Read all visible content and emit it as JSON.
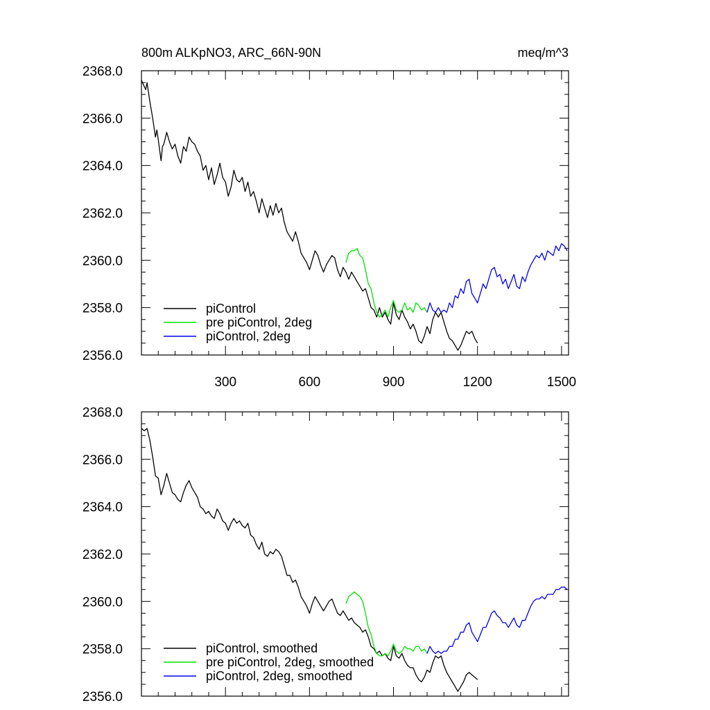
{
  "chart_data": [
    {
      "type": "line",
      "title": "800m ALKpNO3, ARC_66N-90N",
      "units": "meq/m^3",
      "ylim": [
        2356.0,
        2368.0
      ],
      "xlim": [
        0,
        1525
      ],
      "xticks": [
        300,
        600,
        900,
        1200,
        1500
      ],
      "xtick_labels": [
        "300",
        "600",
        "900",
        "1200",
        "1500"
      ],
      "yticks": [
        2356.0,
        2358.0,
        2360.0,
        2362.0,
        2364.0,
        2366.0,
        2368.0
      ],
      "ytick_labels": [
        "2356.0",
        "2358.0",
        "2360.0",
        "2362.0",
        "2364.0",
        "2366.0",
        "2368.0"
      ],
      "grid": false,
      "legend_position": "bottom-left",
      "series": [
        {
          "name": "piControl",
          "color": "#000000",
          "x": [
            0,
            15,
            20,
            30,
            40,
            50,
            55,
            60,
            70,
            75,
            80,
            90,
            100,
            110,
            120,
            130,
            140,
            150,
            160,
            170,
            180,
            190,
            200,
            210,
            220,
            230,
            240,
            250,
            260,
            270,
            280,
            290,
            300,
            310,
            320,
            330,
            340,
            350,
            360,
            370,
            380,
            390,
            400,
            410,
            420,
            430,
            440,
            450,
            460,
            470,
            480,
            490,
            500,
            510,
            520,
            530,
            540,
            550,
            560,
            570,
            580,
            590,
            600,
            610,
            620,
            630,
            640,
            650,
            660,
            670,
            680,
            690,
            700,
            710,
            720,
            730,
            740,
            750,
            760,
            770,
            780,
            790,
            800,
            810,
            820,
            830,
            840,
            850,
            860,
            870,
            880,
            890,
            900,
            910,
            920,
            930,
            940,
            950,
            960,
            970,
            980,
            990,
            1000,
            1010,
            1020,
            1030,
            1040,
            1050,
            1060,
            1070,
            1080,
            1090,
            1100,
            1110,
            1120,
            1130,
            1140,
            1150,
            1160,
            1170,
            1180,
            1190,
            1200
          ],
          "y": [
            2367.6,
            2367.2,
            2367.5,
            2366.7,
            2366.0,
            2365.2,
            2365.5,
            2365.1,
            2364.2,
            2364.8,
            2364.9,
            2365.4,
            2365.0,
            2364.7,
            2364.9,
            2364.4,
            2364.1,
            2364.8,
            2364.6,
            2365.2,
            2365.0,
            2364.9,
            2364.6,
            2364.4,
            2363.8,
            2364.0,
            2363.4,
            2363.9,
            2363.2,
            2363.6,
            2364.1,
            2363.5,
            2363.3,
            2362.7,
            2363.1,
            2363.8,
            2363.4,
            2363.3,
            2363.5,
            2362.9,
            2363.3,
            2362.7,
            2362.9,
            2362.5,
            2362.0,
            2362.6,
            2362.2,
            2361.8,
            2362.3,
            2361.9,
            2362.4,
            2362.0,
            2362.2,
            2361.6,
            2361.2,
            2361.0,
            2360.8,
            2361.2,
            2360.8,
            2360.3,
            2360.1,
            2359.9,
            2359.6,
            2360.0,
            2360.4,
            2360.2,
            2359.8,
            2359.5,
            2359.8,
            2360.0,
            2360.2,
            2360.1,
            2359.6,
            2359.3,
            2359.7,
            2359.5,
            2359.2,
            2359.5,
            2359.3,
            2359.1,
            2358.9,
            2358.7,
            2358.8,
            2358.4,
            2358.0,
            2357.9,
            2357.6,
            2358.0,
            2357.6,
            2357.8,
            2357.5,
            2357.3,
            2358.2,
            2357.7,
            2357.5,
            2357.9,
            2357.6,
            2357.4,
            2357.1,
            2357.3,
            2357.0,
            2356.6,
            2356.5,
            2356.8,
            2357.2,
            2356.9,
            2357.5,
            2357.8,
            2357.6,
            2357.8,
            2357.4,
            2357.0,
            2356.7,
            2356.6,
            2356.4,
            2356.2,
            2356.4,
            2356.7,
            2357.0,
            2356.9,
            2357.0,
            2356.7,
            2356.5
          ]
        },
        {
          "name": "pre piControl, 2deg",
          "color": "#00e000",
          "x": [
            730,
            740,
            750,
            760,
            770,
            780,
            790,
            800,
            810,
            820,
            830,
            840,
            850,
            860,
            870,
            880,
            890,
            900,
            910,
            920,
            930,
            940,
            950,
            960,
            970,
            980,
            990,
            1000,
            1010,
            1020
          ],
          "y": [
            2359.9,
            2360.3,
            2360.4,
            2360.4,
            2360.5,
            2360.2,
            2360.1,
            2359.6,
            2359.0,
            2358.8,
            2358.2,
            2357.8,
            2357.6,
            2357.7,
            2357.9,
            2357.6,
            2358.0,
            2358.3,
            2357.9,
            2357.8,
            2357.9,
            2358.2,
            2357.9,
            2358.0,
            2357.8,
            2358.2,
            2358.1,
            2357.9,
            2358.0,
            2357.8
          ]
        },
        {
          "name": "piControl, 2deg",
          "color": "#0000e6",
          "x": [
            1020,
            1030,
            1040,
            1050,
            1060,
            1070,
            1080,
            1090,
            1100,
            1110,
            1120,
            1130,
            1140,
            1150,
            1160,
            1170,
            1180,
            1190,
            1200,
            1210,
            1220,
            1230,
            1240,
            1250,
            1260,
            1270,
            1280,
            1290,
            1300,
            1310,
            1320,
            1330,
            1340,
            1350,
            1360,
            1370,
            1380,
            1390,
            1400,
            1410,
            1420,
            1430,
            1440,
            1450,
            1460,
            1470,
            1480,
            1490,
            1500,
            1510,
            1520
          ],
          "y": [
            2357.8,
            2358.2,
            2357.9,
            2357.8,
            2358.0,
            2357.8,
            2357.9,
            2357.8,
            2358.2,
            2358.0,
            2358.5,
            2358.4,
            2358.8,
            2358.6,
            2359.1,
            2359.2,
            2358.6,
            2358.4,
            2358.2,
            2358.6,
            2359.0,
            2358.8,
            2359.2,
            2359.6,
            2359.7,
            2359.3,
            2359.4,
            2359.0,
            2359.2,
            2358.8,
            2359.1,
            2359.4,
            2358.9,
            2358.8,
            2359.3,
            2359.1,
            2359.5,
            2359.8,
            2360.0,
            2360.2,
            2360.1,
            2360.3,
            2360.0,
            2360.4,
            2360.3,
            2360.2,
            2360.6,
            2360.4,
            2360.7,
            2360.6,
            2360.4
          ]
        }
      ]
    },
    {
      "type": "line",
      "ylim": [
        2356.0,
        2368.0
      ],
      "xlim": [
        0,
        1525
      ],
      "xticks": [
        300,
        600,
        900,
        1200,
        1500
      ],
      "yticks": [
        2356.0,
        2358.0,
        2360.0,
        2362.0,
        2364.0,
        2366.0,
        2368.0
      ],
      "ytick_labels": [
        "2356.0",
        "2358.0",
        "2360.0",
        "2362.0",
        "2364.0",
        "2366.0",
        "2368.0"
      ],
      "grid": false,
      "legend_position": "bottom-left",
      "series": [
        {
          "name": "piControl, smoothed",
          "color": "#000000",
          "x": [
            0,
            10,
            20,
            30,
            40,
            50,
            60,
            70,
            80,
            90,
            100,
            110,
            120,
            130,
            140,
            150,
            160,
            170,
            180,
            190,
            200,
            210,
            220,
            230,
            240,
            250,
            260,
            270,
            280,
            290,
            300,
            310,
            320,
            330,
            340,
            350,
            360,
            370,
            380,
            390,
            400,
            410,
            420,
            430,
            440,
            450,
            460,
            470,
            480,
            490,
            500,
            510,
            520,
            530,
            540,
            550,
            560,
            570,
            580,
            590,
            600,
            610,
            620,
            630,
            640,
            650,
            660,
            670,
            680,
            690,
            700,
            710,
            720,
            730,
            740,
            750,
            760,
            770,
            780,
            790,
            800,
            810,
            820,
            830,
            840,
            850,
            860,
            870,
            880,
            890,
            900,
            910,
            920,
            930,
            940,
            950,
            960,
            970,
            980,
            990,
            1000,
            1010,
            1020,
            1030,
            1040,
            1050,
            1060,
            1070,
            1080,
            1090,
            1100,
            1110,
            1120,
            1130,
            1140,
            1150,
            1160,
            1170,
            1180,
            1190,
            1200
          ],
          "y": [
            2367.3,
            2367.2,
            2367.3,
            2366.8,
            2366.1,
            2365.3,
            2365.2,
            2364.5,
            2364.9,
            2365.4,
            2365.0,
            2364.6,
            2364.5,
            2364.3,
            2364.2,
            2364.6,
            2364.9,
            2365.1,
            2364.8,
            2364.6,
            2364.4,
            2364.0,
            2363.9,
            2363.7,
            2363.8,
            2363.6,
            2363.5,
            2363.9,
            2363.7,
            2363.4,
            2363.3,
            2363.0,
            2363.3,
            2363.5,
            2363.3,
            2363.4,
            2363.2,
            2363.1,
            2363.3,
            2362.8,
            2362.7,
            2362.4,
            2362.2,
            2362.5,
            2362.0,
            2361.9,
            2362.1,
            2362.0,
            2362.2,
            2362.1,
            2361.9,
            2361.5,
            2361.1,
            2361.1,
            2360.8,
            2360.9,
            2360.6,
            2360.2,
            2360.0,
            2359.8,
            2359.5,
            2359.9,
            2360.2,
            2360.0,
            2359.8,
            2359.6,
            2359.8,
            2360.0,
            2360.1,
            2359.8,
            2359.5,
            2359.4,
            2359.6,
            2359.4,
            2359.2,
            2359.3,
            2359.1,
            2359.0,
            2358.9,
            2358.7,
            2358.8,
            2358.5,
            2358.1,
            2358.0,
            2357.8,
            2357.9,
            2357.7,
            2357.8,
            2357.6,
            2357.5,
            2358.1,
            2357.7,
            2357.6,
            2357.8,
            2357.5,
            2357.3,
            2357.2,
            2357.2,
            2356.9,
            2356.7,
            2356.6,
            2356.8,
            2357.1,
            2357.0,
            2357.4,
            2357.7,
            2357.6,
            2357.7,
            2357.3,
            2357.0,
            2356.8,
            2356.6,
            2356.4,
            2356.2,
            2356.4,
            2356.6,
            2356.9,
            2357.0,
            2356.9,
            2356.8,
            2356.7
          ]
        },
        {
          "name": "pre piControl, 2deg, smoothed",
          "color": "#00e000",
          "x": [
            730,
            740,
            750,
            760,
            770,
            780,
            790,
            800,
            810,
            820,
            830,
            840,
            850,
            860,
            870,
            880,
            890,
            900,
            910,
            920,
            930,
            940,
            950,
            960,
            970,
            980,
            990,
            1000,
            1010,
            1020
          ],
          "y": [
            2359.9,
            2360.2,
            2360.3,
            2360.4,
            2360.3,
            2360.2,
            2360.0,
            2359.5,
            2358.9,
            2358.6,
            2358.1,
            2357.8,
            2357.7,
            2357.7,
            2357.8,
            2357.7,
            2357.9,
            2358.2,
            2357.9,
            2357.8,
            2357.9,
            2358.1,
            2358.0,
            2358.0,
            2357.9,
            2358.1,
            2358.1,
            2357.9,
            2358.0,
            2357.8
          ]
        },
        {
          "name": "piControl, 2deg, smoothed",
          "color": "#0000e6",
          "x": [
            1020,
            1030,
            1040,
            1050,
            1060,
            1070,
            1080,
            1090,
            1100,
            1110,
            1120,
            1130,
            1140,
            1150,
            1160,
            1170,
            1180,
            1190,
            1200,
            1210,
            1220,
            1230,
            1240,
            1250,
            1260,
            1270,
            1280,
            1290,
            1300,
            1310,
            1320,
            1330,
            1340,
            1350,
            1360,
            1370,
            1380,
            1390,
            1400,
            1410,
            1420,
            1430,
            1440,
            1450,
            1460,
            1470,
            1480,
            1490,
            1500,
            1510,
            1520
          ],
          "y": [
            2357.8,
            2358.1,
            2357.9,
            2357.8,
            2357.9,
            2357.8,
            2357.9,
            2357.9,
            2358.1,
            2358.1,
            2358.4,
            2358.4,
            2358.7,
            2358.7,
            2359.0,
            2359.1,
            2358.7,
            2358.5,
            2358.3,
            2358.6,
            2358.9,
            2358.9,
            2359.2,
            2359.5,
            2359.6,
            2359.4,
            2359.3,
            2359.1,
            2359.1,
            2358.9,
            2359.1,
            2359.3,
            2359.0,
            2358.9,
            2359.2,
            2359.2,
            2359.5,
            2359.8,
            2360.0,
            2360.1,
            2360.1,
            2360.2,
            2360.1,
            2360.3,
            2360.3,
            2360.3,
            2360.5,
            2360.5,
            2360.6,
            2360.6,
            2360.5
          ]
        }
      ]
    }
  ]
}
